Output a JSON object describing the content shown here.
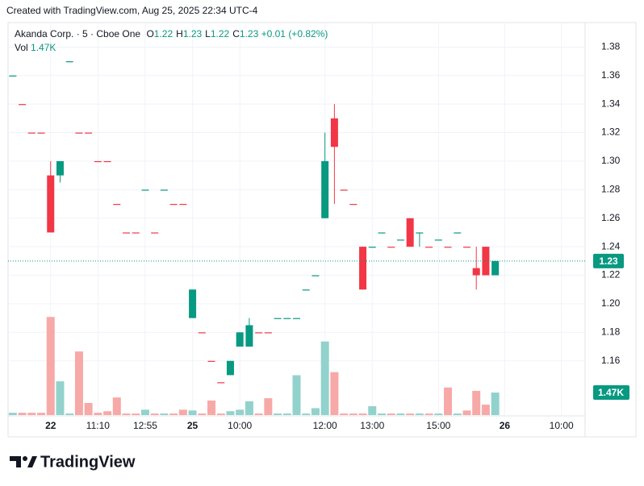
{
  "chart_data": {
    "type": "candlestick",
    "header": "Created with TradingView.com, Aug 25, 2025 22:34 UTC-4",
    "legend": {
      "symbol": "Akanda Corp. · 5 · Cboe One",
      "fields": [
        {
          "label": "O",
          "value": 1.22
        },
        {
          "label": "H",
          "value": 1.23
        },
        {
          "label": "L",
          "value": 1.22
        },
        {
          "label": "C",
          "value": 1.23
        }
      ],
      "change": {
        "value": 0.01,
        "label": "+0.01"
      },
      "change_pct": {
        "value": 0.82,
        "label": "(+0.82%)"
      },
      "volume_label": "Vol",
      "volume": {
        "value": 1470,
        "label": "1.47K"
      }
    },
    "brand": "TradingView",
    "x": [
      0,
      1,
      2,
      3,
      4,
      5,
      6,
      7,
      8,
      9,
      10,
      11,
      12,
      13,
      14,
      15,
      16,
      17,
      18,
      19,
      20,
      21,
      22,
      23,
      24,
      25,
      26,
      27,
      28,
      29,
      30,
      31,
      32,
      33,
      34,
      35,
      36,
      37,
      38,
      39,
      40,
      41,
      42,
      43,
      44,
      45,
      46,
      47,
      48,
      49,
      50,
      51
    ],
    "open": [
      1.36,
      1.34,
      1.32,
      1.32,
      1.29,
      1.29,
      1.37,
      1.32,
      1.32,
      1.3,
      1.3,
      1.27,
      1.25,
      1.25,
      1.28,
      1.25,
      1.28,
      1.27,
      1.27,
      1.19,
      1.18,
      1.16,
      1.145,
      1.15,
      1.17,
      1.17,
      1.18,
      1.18,
      1.19,
      1.19,
      1.19,
      1.21,
      1.22,
      1.26,
      1.33,
      1.28,
      1.27,
      1.24,
      1.24,
      1.25,
      1.24,
      1.245,
      1.26,
      1.25,
      1.24,
      1.245,
      1.24,
      1.25,
      1.24,
      1.225,
      1.24,
      1.22
    ],
    "high": [
      1.36,
      1.34,
      1.32,
      1.32,
      1.3,
      1.3,
      1.37,
      1.32,
      1.32,
      1.3,
      1.3,
      1.27,
      1.25,
      1.25,
      1.28,
      1.25,
      1.28,
      1.27,
      1.27,
      1.21,
      1.18,
      1.16,
      1.145,
      1.16,
      1.18,
      1.19,
      1.18,
      1.18,
      1.19,
      1.19,
      1.19,
      1.21,
      1.22,
      1.32,
      1.34,
      1.28,
      1.27,
      1.24,
      1.24,
      1.25,
      1.24,
      1.245,
      1.26,
      1.25,
      1.24,
      1.245,
      1.24,
      1.25,
      1.24,
      1.24,
      1.24,
      1.23
    ],
    "low": [
      1.36,
      1.34,
      1.32,
      1.32,
      1.25,
      1.285,
      1.37,
      1.32,
      1.32,
      1.3,
      1.3,
      1.27,
      1.25,
      1.25,
      1.28,
      1.25,
      1.28,
      1.27,
      1.27,
      1.19,
      1.18,
      1.16,
      1.145,
      1.15,
      1.17,
      1.17,
      1.18,
      1.18,
      1.19,
      1.19,
      1.19,
      1.21,
      1.22,
      1.26,
      1.27,
      1.28,
      1.27,
      1.21,
      1.24,
      1.25,
      1.24,
      1.245,
      1.24,
      1.24,
      1.24,
      1.245,
      1.24,
      1.25,
      1.24,
      1.21,
      1.22,
      1.22
    ],
    "close": [
      1.36,
      1.34,
      1.32,
      1.32,
      1.25,
      1.3,
      1.37,
      1.32,
      1.32,
      1.3,
      1.3,
      1.27,
      1.25,
      1.25,
      1.28,
      1.25,
      1.28,
      1.27,
      1.27,
      1.21,
      1.18,
      1.16,
      1.145,
      1.16,
      1.18,
      1.185,
      1.18,
      1.18,
      1.19,
      1.19,
      1.19,
      1.21,
      1.22,
      1.3,
      1.31,
      1.28,
      1.27,
      1.21,
      1.24,
      1.25,
      1.24,
      1.245,
      1.24,
      1.25,
      1.24,
      1.245,
      1.24,
      1.25,
      1.24,
      1.22,
      1.22,
      1.23
    ],
    "volume": [
      150,
      150,
      150,
      150,
      6400,
      2200,
      100,
      4150,
      790,
      150,
      250,
      1150,
      100,
      100,
      350,
      100,
      100,
      100,
      350,
      300,
      100,
      950,
      100,
      250,
      350,
      900,
      100,
      1100,
      100,
      100,
      2600,
      100,
      450,
      4800,
      2800,
      100,
      100,
      100,
      580,
      100,
      100,
      100,
      100,
      100,
      100,
      100,
      1800,
      100,
      300,
      1580,
      680,
      1470
    ],
    "up_color": "#089981",
    "down_color": "#f23645",
    "up_volume_color": "#92d2cc",
    "down_volume_color": "#f7a9a7",
    "xlim": [
      -0.5,
      60.5
    ],
    "xticks": [
      {
        "value": 4,
        "label": "22"
      },
      {
        "value": 9,
        "label": "11:10"
      },
      {
        "value": 14,
        "label": "12:55"
      },
      {
        "value": 19,
        "label": "25"
      },
      {
        "value": 24,
        "label": "10:00"
      },
      {
        "value": 33,
        "label": "12:00"
      },
      {
        "value": 38,
        "label": "13:00"
      },
      {
        "value": 45,
        "label": "15:00"
      },
      {
        "value": 52,
        "label": "26"
      },
      {
        "value": 58,
        "label": "10:00"
      }
    ],
    "ylim": [
      1.122,
      1.396
    ],
    "yticks": [
      1.16,
      1.18,
      {
        "value": 1.2,
        "label": "1.20"
      },
      1.22,
      1.24,
      1.26,
      1.28,
      {
        "value": 1.3,
        "label": "1.30"
      },
      1.32,
      1.34,
      1.36,
      1.38
    ],
    "y2lim": [
      0,
      25500
    ],
    "grid": true
  }
}
